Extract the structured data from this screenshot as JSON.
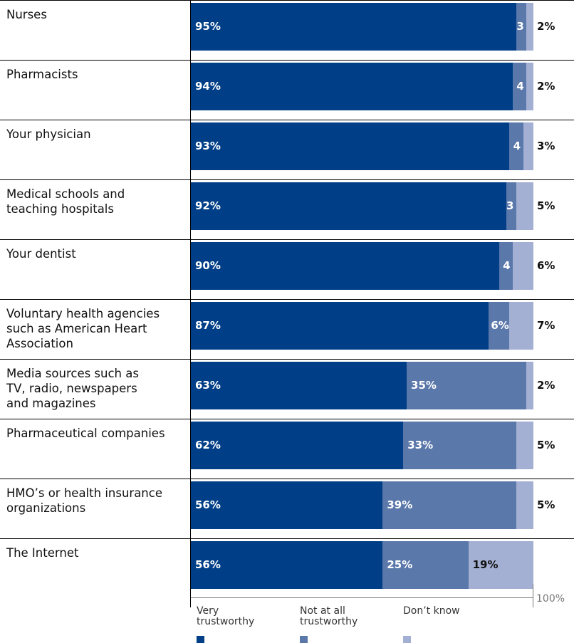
{
  "colors": {
    "very": "#003f87",
    "not": "#5b78aa",
    "dont": "#a3b0d3"
  },
  "chart_data": {
    "type": "bar",
    "orientation": "horizontal",
    "stacked": true,
    "categories": [
      "Nurses",
      "Pharmacists",
      "Your physician",
      "Medical schools and\nteaching hospitals",
      "Your dentist",
      "Voluntary health agencies\nsuch as American Heart\nAssociation",
      "Media sources such as\nTV, radio, newspapers\nand magazines",
      "Pharmaceutical companies",
      "HMO’s or health insurance\norganizations",
      "The Internet"
    ],
    "series": [
      {
        "name": "Very\ntrustworthy",
        "values": [
          95,
          94,
          93,
          92,
          90,
          87,
          63,
          62,
          56,
          56
        ],
        "labels": [
          "95%",
          "94%",
          "93%",
          "92%",
          "90%",
          "87%",
          "63%",
          "62%",
          "56%",
          "56%"
        ]
      },
      {
        "name": "Not at all\ntrustworthy",
        "values": [
          3,
          4,
          4,
          3,
          4,
          6,
          35,
          33,
          39,
          25
        ],
        "labels": [
          "3",
          "4",
          "4",
          "3",
          "4",
          "6%",
          "35%",
          "33%",
          "39%",
          "25%"
        ]
      },
      {
        "name": "Don’t know",
        "values": [
          2,
          2,
          3,
          5,
          6,
          7,
          2,
          5,
          5,
          19
        ],
        "labels": [
          "2%",
          "2%",
          "3%",
          "5%",
          "6%",
          "7%",
          "2%",
          "5%",
          "5%",
          "19%"
        ]
      }
    ],
    "axis_end_label": "100%",
    "xlim": [
      0,
      100
    ]
  }
}
